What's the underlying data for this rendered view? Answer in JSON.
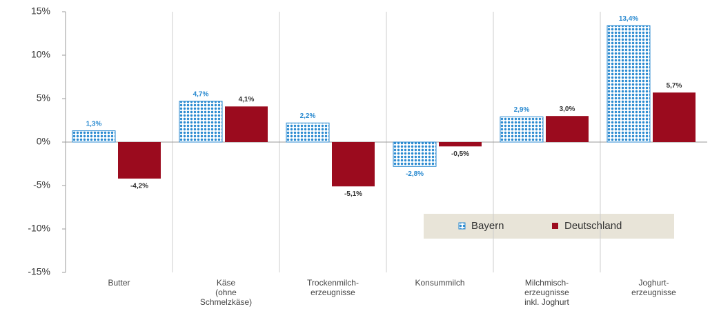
{
  "chart_data": {
    "type": "bar",
    "categories": [
      [
        "Butter"
      ],
      [
        "Käse",
        "(ohne",
        "Schmelzkäse)"
      ],
      [
        "Trockenmilch-",
        "erzeugnisse"
      ],
      [
        "Konsummilch"
      ],
      [
        "Milchmisch-",
        "erzeugnisse",
        "inkl. Joghurt"
      ],
      [
        "Joghurt-",
        "erzeugnisse"
      ]
    ],
    "series": [
      {
        "name": "Bayern",
        "color": "#2a8ad0",
        "values": [
          1.3,
          4.7,
          2.2,
          -2.8,
          2.9,
          13.4
        ],
        "value_labels": [
          "1,3%",
          "4,7%",
          "2,2%",
          "-2,8%",
          "2,9%",
          "13,4%"
        ]
      },
      {
        "name": "Deutschland",
        "color": "#9b0b1e",
        "values": [
          -4.2,
          4.1,
          -5.1,
          -0.5,
          3.0,
          5.7
        ],
        "value_labels": [
          "-4,2%",
          "4,1%",
          "-5,1%",
          "-0,5%",
          "3,0%",
          "5,7%"
        ]
      }
    ],
    "ylim": [
      -15,
      15
    ],
    "yticks": [
      {
        "value": -15,
        "label": "-15%"
      },
      {
        "value": -10,
        "label": "-10%"
      },
      {
        "value": -5,
        "label": "-5%"
      },
      {
        "value": 0,
        "label": "0%"
      },
      {
        "value": 5,
        "label": "5%"
      },
      {
        "value": 10,
        "label": "10%"
      },
      {
        "value": 15,
        "label": "15%"
      }
    ]
  }
}
